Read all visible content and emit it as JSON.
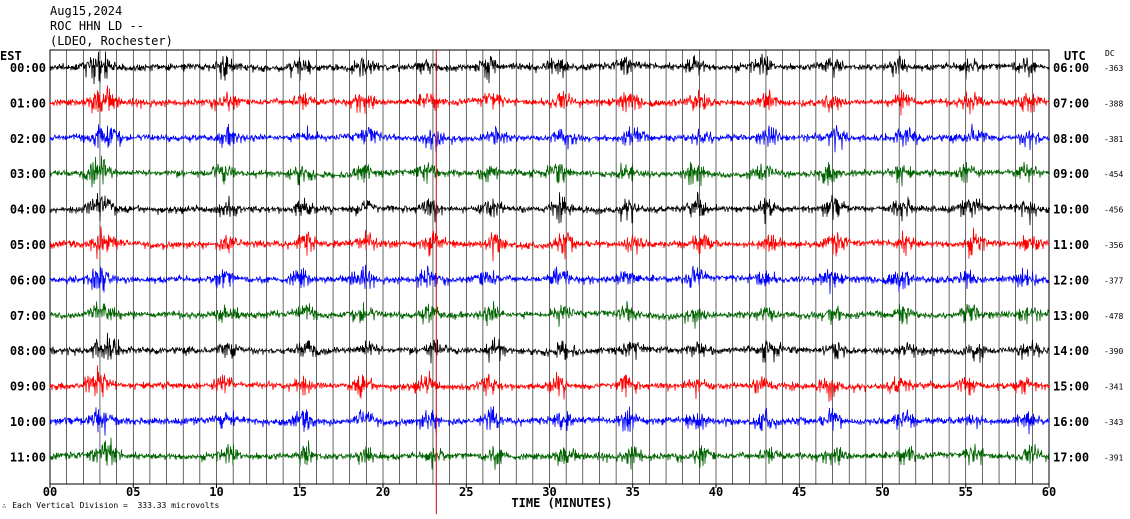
{
  "header": {
    "date": "Aug15,2024",
    "station": "ROC HHN LD --",
    "network": "(LDEO, Rochester)"
  },
  "left_tz": "EST",
  "right_tz": "UTC",
  "dc_header": "DC",
  "footer": {
    "symbol": "∴",
    "text": "Each Vertical Division =  333.33 microvolts"
  },
  "colors": {
    "black": "#000000",
    "red": "#ff0000",
    "blue": "#0000ff",
    "green": "#006400",
    "marker": "#cc0000"
  },
  "chart_data": {
    "type": "line",
    "title": "ROC HHN LD --",
    "xlabel": "TIME (MINUTES)",
    "ylabel": "",
    "xlim": [
      0,
      60
    ],
    "x_ticks": [
      "00",
      "05",
      "10",
      "15",
      "20",
      "25",
      "30",
      "35",
      "40",
      "45",
      "50",
      "55",
      "60"
    ],
    "grid": true,
    "color_cycle": [
      "black",
      "red",
      "blue",
      "green"
    ],
    "rows": [
      {
        "est": "00:00",
        "utc": "06:00",
        "dc": "-363",
        "color": "black"
      },
      {
        "est": "01:00",
        "utc": "07:00",
        "dc": "-388",
        "color": "red"
      },
      {
        "est": "02:00",
        "utc": "08:00",
        "dc": "-381",
        "color": "blue"
      },
      {
        "est": "03:00",
        "utc": "09:00",
        "dc": "-454",
        "color": "green"
      },
      {
        "est": "04:00",
        "utc": "10:00",
        "dc": "-456",
        "color": "black"
      },
      {
        "est": "05:00",
        "utc": "11:00",
        "dc": "-356",
        "color": "red"
      },
      {
        "est": "06:00",
        "utc": "12:00",
        "dc": "-377",
        "color": "blue"
      },
      {
        "est": "07:00",
        "utc": "13:00",
        "dc": "-478",
        "color": "green"
      },
      {
        "est": "08:00",
        "utc": "14:00",
        "dc": "-390",
        "color": "black"
      },
      {
        "est": "09:00",
        "utc": "15:00",
        "dc": "-341",
        "color": "red"
      },
      {
        "est": "10:00",
        "utc": "16:00",
        "dc": "-343",
        "color": "blue"
      },
      {
        "est": "11:00",
        "utc": "17:00",
        "dc": "-391",
        "color": "green"
      }
    ],
    "marker_minute": 23.2
  }
}
